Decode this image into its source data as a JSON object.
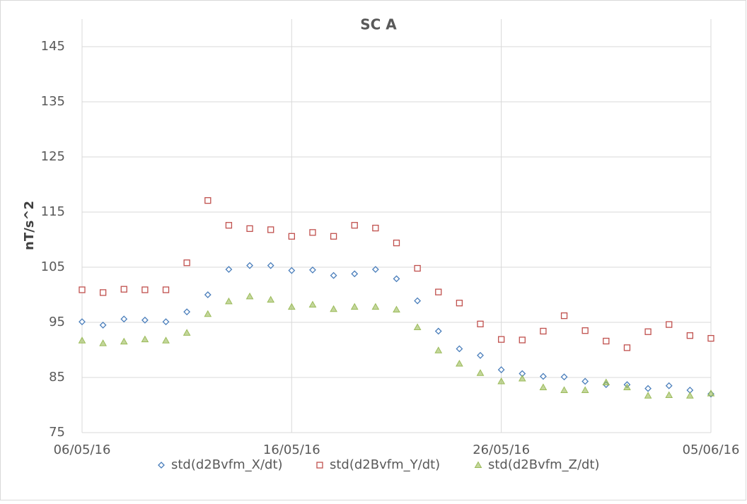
{
  "chart_data": {
    "type": "scatter",
    "title": "SC A",
    "y_label": "nT/s^2",
    "x": [
      "2016-05-06",
      "2016-05-07",
      "2016-05-08",
      "2016-05-09",
      "2016-05-10",
      "2016-05-11",
      "2016-05-12",
      "2016-05-13",
      "2016-05-14",
      "2016-05-15",
      "2016-05-16",
      "2016-05-17",
      "2016-05-18",
      "2016-05-19",
      "2016-05-20",
      "2016-05-21",
      "2016-05-22",
      "2016-05-23",
      "2016-05-24",
      "2016-05-25",
      "2016-05-26",
      "2016-05-27",
      "2016-05-28",
      "2016-05-29",
      "2016-05-30",
      "2016-05-31",
      "2016-06-01",
      "2016-06-02",
      "2016-06-03",
      "2016-06-04",
      "2016-06-05"
    ],
    "xlim": [
      "2016-05-06",
      "2016-06-05"
    ],
    "xticks": [
      {
        "value": "2016-05-06",
        "label": "06/05/16"
      },
      {
        "value": "2016-05-16",
        "label": "16/05/16"
      },
      {
        "value": "2016-05-26",
        "label": "26/05/16"
      },
      {
        "value": "2016-06-05",
        "label": "05/06/16"
      }
    ],
    "ylim": [
      75,
      150
    ],
    "yticks": [
      75,
      85,
      95,
      105,
      115,
      125,
      135,
      145
    ],
    "grid": true,
    "legend": "bottom",
    "series": [
      {
        "name": "std(d2Bvfm_X/dt)",
        "color": "#4a7ebb",
        "marker": "diamond",
        "values": [
          95.1,
          94.5,
          95.6,
          95.4,
          95.1,
          96.9,
          100.0,
          104.6,
          105.3,
          105.3,
          104.4,
          104.5,
          103.5,
          103.8,
          104.6,
          102.9,
          98.9,
          93.4,
          90.2,
          89.0,
          86.4,
          85.7,
          85.2,
          85.1,
          84.3,
          83.7,
          83.7,
          83.0,
          83.5,
          82.7,
          82.0
        ]
      },
      {
        "name": "std(d2Bvfm_Y/dt)",
        "color": "#c0504d",
        "marker": "square",
        "values": [
          100.9,
          100.4,
          101.0,
          100.9,
          100.9,
          105.8,
          117.1,
          112.6,
          112.0,
          111.8,
          110.6,
          111.3,
          110.6,
          112.6,
          112.1,
          109.4,
          104.8,
          100.5,
          98.5,
          94.7,
          91.9,
          91.8,
          93.4,
          96.2,
          93.5,
          91.6,
          90.4,
          93.3,
          94.6,
          92.6,
          92.1
        ]
      },
      {
        "name": "std(d2Bvfm_Z/dt)",
        "color": "#9bbb59",
        "marker": "triangle",
        "values": [
          91.7,
          91.2,
          91.5,
          91.9,
          91.7,
          93.1,
          96.5,
          98.8,
          99.7,
          99.1,
          97.8,
          98.2,
          97.4,
          97.8,
          97.8,
          97.3,
          94.1,
          89.9,
          87.5,
          85.8,
          84.3,
          84.8,
          83.2,
          82.7,
          82.7,
          84.1,
          83.2,
          81.7,
          81.8,
          81.7,
          82.1
        ]
      }
    ]
  }
}
